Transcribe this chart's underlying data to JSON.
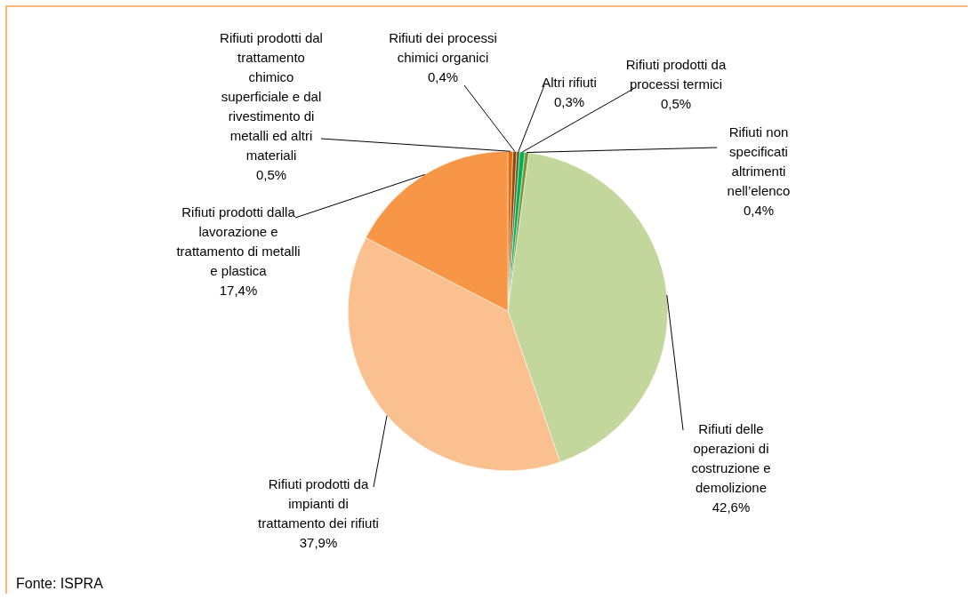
{
  "chart_data": {
    "type": "pie",
    "categories": [
      "Rifiuti prodotti dal trattamento chimico superficiale e dal rivestimento di metalli ed altri materiali",
      "Rifiuti dei processi chimici organici",
      "Altri rifiuti",
      "Rifiuti prodotti da processi termici",
      "Rifiuti non specificati altrimenti nell’elenco",
      "Rifiuti delle operazioni di costruzione e demolizione",
      "Rifiuti prodotti da impianti di trattamento dei rifiuti",
      "Rifiuti prodotti dalla lavorazione e trattamento di metalli e plastica"
    ],
    "values": [
      0.5,
      0.4,
      0.3,
      0.5,
      0.4,
      42.6,
      37.9,
      17.4
    ],
    "colors": [
      "#e36c0a",
      "#984806",
      "#4f6228",
      "#00b050",
      "#77933c",
      "#c3d69b",
      "#fac090",
      "#f79646"
    ],
    "value_labels": [
      "0,5%",
      "0,4%",
      "0,3%",
      "0,5%",
      "0,4%",
      "42,6%",
      "37,9%",
      "17,4%"
    ],
    "legend": false,
    "annotations": [
      "Fonte: ISPRA"
    ]
  }
}
